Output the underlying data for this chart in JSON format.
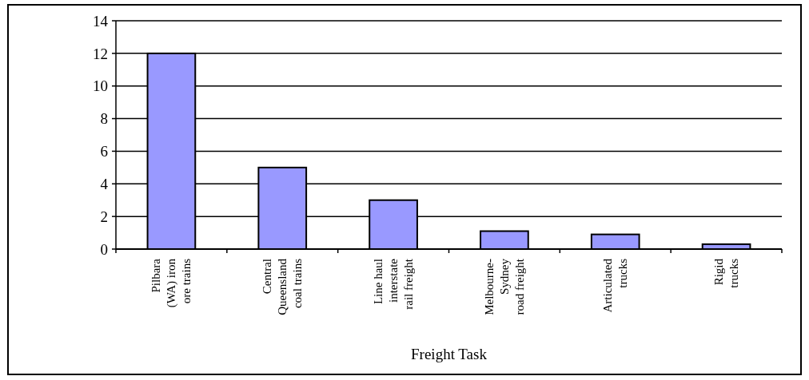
{
  "chart_data": {
    "type": "bar",
    "xlabel": "Freight Task",
    "categories": [
      "Pilbara\n(WA) iron\nore trains",
      "Central\nQueensland\ncoal trains",
      "Line haul\ninterstate\nrail freight",
      "Melbourne-\nSydney\nroad freight",
      "Articulated\ntrucks",
      "Rigid\ntrucks"
    ],
    "values": [
      12,
      5,
      3,
      1.1,
      0.9,
      0.3
    ],
    "color": "#9999ff",
    "ylim": [
      0,
      14
    ],
    "yticks": [
      0,
      2,
      4,
      6,
      8,
      10,
      12,
      14
    ],
    "grid": "y"
  }
}
